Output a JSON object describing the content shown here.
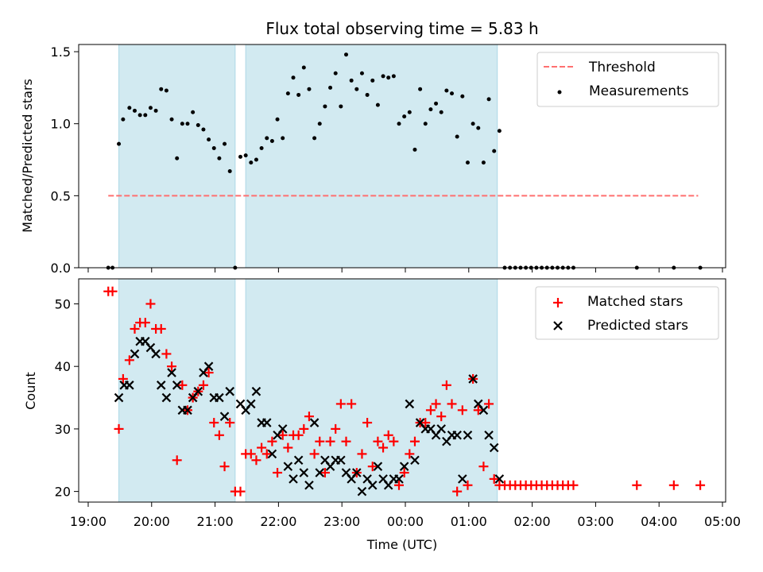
{
  "title": "Flux total observing time = 5.83 h",
  "colors": {
    "shade": "#add8e6",
    "threshold": "#ff7070",
    "measurement": "#000000",
    "matched": "#ff0000",
    "predicted": "#000000"
  },
  "chart_data": [
    {
      "type": "scatter",
      "ylabel": "Matched/Predicted stars",
      "ylim": [
        0,
        1.55
      ],
      "xlim": [
        "18:51",
        "05:03"
      ],
      "yticks": [
        "0.0",
        "0.5",
        "1.0",
        "1.5"
      ],
      "grid": false,
      "legend": "top-right",
      "legend_entries": [
        "Threshold",
        "Measurements"
      ],
      "shaded_intervals": [
        [
          "19:29",
          "21:19"
        ],
        [
          "21:29",
          "01:27"
        ]
      ],
      "threshold": {
        "name": "Threshold",
        "y": 0.5,
        "x": [
          "19:19",
          "04:37"
        ]
      },
      "series": [
        {
          "name": "Measurements",
          "x": [
            "19:19",
            "19:23",
            "19:29",
            "19:33",
            "19:39",
            "19:44",
            "19:49",
            "19:54",
            "19:59",
            "20:04",
            "20:09",
            "20:14",
            "20:19",
            "20:24",
            "20:29",
            "20:34",
            "20:39",
            "20:44",
            "20:49",
            "20:54",
            "20:59",
            "21:04",
            "21:09",
            "21:14",
            "21:19",
            "21:24",
            "21:29",
            "21:34",
            "21:39",
            "21:44",
            "21:49",
            "21:54",
            "21:59",
            "22:04",
            "22:09",
            "22:14",
            "22:19",
            "22:24",
            "22:29",
            "22:34",
            "22:39",
            "22:44",
            "22:49",
            "22:54",
            "22:59",
            "23:04",
            "23:09",
            "23:14",
            "23:19",
            "23:24",
            "23:29",
            "23:34",
            "23:39",
            "23:44",
            "23:49",
            "23:54",
            "23:59",
            "00:04",
            "00:09",
            "00:14",
            "00:19",
            "00:24",
            "00:29",
            "00:34",
            "00:39",
            "00:44",
            "00:49",
            "00:54",
            "00:59",
            "01:04",
            "01:09",
            "01:14",
            "01:19",
            "01:24",
            "01:29",
            "01:34",
            "01:39",
            "01:44",
            "01:49",
            "01:54",
            "01:59",
            "02:04",
            "02:09",
            "02:14",
            "02:19",
            "02:24",
            "02:29",
            "02:34",
            "02:39",
            "03:39",
            "04:14",
            "04:39"
          ],
          "values": [
            0.0,
            0.0,
            0.86,
            1.03,
            1.11,
            1.09,
            1.06,
            1.06,
            1.11,
            1.09,
            1.24,
            1.23,
            1.03,
            0.76,
            1.0,
            1.0,
            1.08,
            0.99,
            0.96,
            0.89,
            0.83,
            0.76,
            0.86,
            0.67,
            0.0,
            0.77,
            0.78,
            0.73,
            0.75,
            0.83,
            0.9,
            0.88,
            1.03,
            0.9,
            1.21,
            1.32,
            1.2,
            1.39,
            1.24,
            0.9,
            1.0,
            1.12,
            1.25,
            1.35,
            1.12,
            1.48,
            1.3,
            1.24,
            1.35,
            1.2,
            1.3,
            1.13,
            1.33,
            1.32,
            1.33,
            1.0,
            1.05,
            1.08,
            0.82,
            1.24,
            1.0,
            1.1,
            1.14,
            1.08,
            1.23,
            1.21,
            0.91,
            1.19,
            0.73,
            1.0,
            0.97,
            0.73,
            1.17,
            0.81,
            0.95,
            0.0,
            0.0,
            0.0,
            0.0,
            0.0,
            0.0,
            0.0,
            0.0,
            0.0,
            0.0,
            0.0,
            0.0,
            0.0,
            0.0,
            0.0,
            0.0,
            0.0
          ]
        }
      ]
    },
    {
      "type": "scatter",
      "ylabel": "Count",
      "xlabel": "Time (UTC)",
      "ylim": [
        18.3,
        54
      ],
      "xlim": [
        "18:51",
        "05:03"
      ],
      "yticks": [
        "20",
        "30",
        "40",
        "50"
      ],
      "xticks": [
        "19:00",
        "20:00",
        "21:00",
        "22:00",
        "23:00",
        "00:00",
        "01:00",
        "02:00",
        "03:00",
        "04:00",
        "05:00"
      ],
      "grid": false,
      "legend": "top-right",
      "legend_entries": [
        "Matched stars",
        "Predicted stars"
      ],
      "shaded_intervals": [
        [
          "19:29",
          "21:19"
        ],
        [
          "21:29",
          "01:27"
        ]
      ],
      "series": [
        {
          "name": "Matched stars",
          "x": [
            "19:19",
            "19:23",
            "19:29",
            "19:33",
            "19:39",
            "19:44",
            "19:49",
            "19:54",
            "19:59",
            "20:04",
            "20:09",
            "20:14",
            "20:19",
            "20:24",
            "20:29",
            "20:34",
            "20:39",
            "20:44",
            "20:49",
            "20:54",
            "20:59",
            "21:04",
            "21:09",
            "21:14",
            "21:19",
            "21:24",
            "21:29",
            "21:34",
            "21:39",
            "21:44",
            "21:49",
            "21:54",
            "21:59",
            "22:04",
            "22:09",
            "22:14",
            "22:19",
            "22:24",
            "22:29",
            "22:34",
            "22:39",
            "22:44",
            "22:49",
            "22:54",
            "22:59",
            "23:04",
            "23:09",
            "23:14",
            "23:19",
            "23:24",
            "23:29",
            "23:34",
            "23:39",
            "23:44",
            "23:49",
            "23:54",
            "23:59",
            "00:04",
            "00:09",
            "00:14",
            "00:19",
            "00:24",
            "00:29",
            "00:34",
            "00:39",
            "00:44",
            "00:49",
            "00:54",
            "00:59",
            "01:04",
            "01:09",
            "01:14",
            "01:19",
            "01:24",
            "01:29",
            "01:34",
            "01:39",
            "01:44",
            "01:49",
            "01:54",
            "01:59",
            "02:04",
            "02:09",
            "02:14",
            "02:19",
            "02:24",
            "02:29",
            "02:34",
            "02:39",
            "03:39",
            "04:14",
            "04:39"
          ],
          "values": [
            52,
            52,
            30,
            38,
            41,
            46,
            47,
            47,
            50,
            46,
            46,
            42,
            40,
            25,
            37,
            33,
            35,
            36,
            37,
            39,
            31,
            29,
            24,
            31,
            20,
            20,
            26,
            26,
            25,
            27,
            26,
            28,
            23,
            29,
            27,
            29,
            29,
            30,
            32,
            26,
            28,
            23,
            28,
            30,
            34,
            28,
            34,
            23,
            26,
            31,
            24,
            28,
            27,
            29,
            28,
            21,
            23,
            26,
            28,
            31,
            31,
            33,
            34,
            32,
            37,
            34,
            20,
            33,
            21,
            38,
            33,
            24,
            34,
            22,
            21,
            21,
            21,
            21,
            21,
            21,
            21,
            21,
            21,
            21,
            21,
            21,
            21,
            21,
            21,
            21,
            21,
            21
          ]
        },
        {
          "name": "Predicted stars",
          "x": [
            "19:29",
            "19:34",
            "19:39",
            "19:44",
            "19:49",
            "19:54",
            "19:59",
            "20:04",
            "20:09",
            "20:14",
            "20:19",
            "20:24",
            "20:29",
            "20:34",
            "20:39",
            "20:44",
            "20:49",
            "20:54",
            "20:59",
            "21:04",
            "21:09",
            "21:14",
            "21:24",
            "21:29",
            "21:34",
            "21:39",
            "21:44",
            "21:49",
            "21:54",
            "21:59",
            "22:04",
            "22:09",
            "22:14",
            "22:19",
            "22:24",
            "22:29",
            "22:34",
            "22:39",
            "22:44",
            "22:49",
            "22:54",
            "22:59",
            "23:04",
            "23:09",
            "23:14",
            "23:19",
            "23:24",
            "23:29",
            "23:34",
            "23:39",
            "23:44",
            "23:49",
            "23:54",
            "23:59",
            "00:04",
            "00:09",
            "00:14",
            "00:19",
            "00:24",
            "00:29",
            "00:34",
            "00:39",
            "00:44",
            "00:49",
            "00:54",
            "00:59",
            "01:04",
            "01:09",
            "01:14",
            "01:19",
            "01:24",
            "01:29"
          ],
          "values": [
            35,
            37,
            37,
            42,
            44,
            44,
            43,
            42,
            37,
            35,
            39,
            37,
            33,
            33,
            35,
            36,
            39,
            40,
            35,
            35,
            32,
            36,
            34,
            33,
            34,
            36,
            31,
            31,
            26,
            29,
            30,
            24,
            22,
            25,
            23,
            21,
            31,
            23,
            25,
            24,
            25,
            25,
            23,
            22,
            23,
            20,
            22,
            21,
            24,
            22,
            21,
            22,
            22,
            24,
            34,
            25,
            31,
            30,
            30,
            29,
            30,
            28,
            29,
            29,
            22,
            29,
            38,
            34,
            33,
            29,
            27,
            22
          ]
        }
      ]
    }
  ]
}
